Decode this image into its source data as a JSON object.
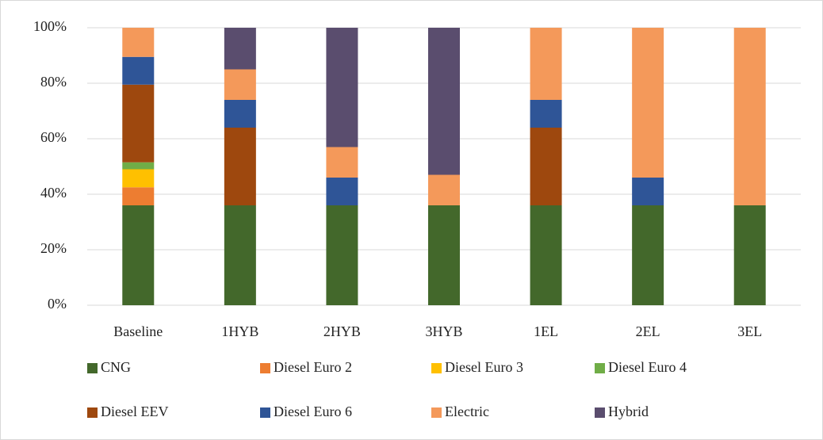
{
  "chart_data": {
    "type": "stacked_bar",
    "categories": [
      "Baseline",
      "1HYB",
      "2HYB",
      "3HYB",
      "1EL",
      "2EL",
      "3EL"
    ],
    "series": [
      {
        "name": "CNG",
        "color": "#43682b",
        "values": [
          36,
          36,
          36,
          36,
          36,
          36,
          36
        ]
      },
      {
        "name": "Diesel Euro 2",
        "color": "#ed7d31",
        "values": [
          6.5,
          0,
          0,
          0,
          0,
          0,
          0
        ]
      },
      {
        "name": "Diesel Euro 3",
        "color": "#ffc000",
        "values": [
          6.5,
          0,
          0,
          0,
          0,
          0,
          0
        ]
      },
      {
        "name": "Diesel Euro 4",
        "color": "#70ad47",
        "values": [
          2.5,
          0,
          0,
          0,
          0,
          0,
          0
        ]
      },
      {
        "name": "Diesel EEV",
        "color": "#9e480e",
        "values": [
          28,
          28,
          0,
          0,
          28,
          0,
          0
        ]
      },
      {
        "name": "Diesel Euro 6",
        "color": "#2f5597",
        "values": [
          10,
          10,
          10,
          0,
          10,
          10,
          0
        ]
      },
      {
        "name": "Electric",
        "color": "#f4995a",
        "values": [
          10.5,
          11,
          11,
          11,
          26,
          54,
          64
        ]
      },
      {
        "name": "Hybrid",
        "color": "#5a4d6e",
        "values": [
          0,
          15,
          43,
          53,
          0,
          0,
          0
        ]
      }
    ],
    "ylim": [
      0,
      100
    ],
    "yticks": [
      {
        "value": 0,
        "label": "0%"
      },
      {
        "value": 20,
        "label": "20%"
      },
      {
        "value": 40,
        "label": "40%"
      },
      {
        "value": 60,
        "label": "60%"
      },
      {
        "value": 80,
        "label": "80%"
      },
      {
        "value": 100,
        "label": "100%"
      }
    ],
    "grid": true
  }
}
